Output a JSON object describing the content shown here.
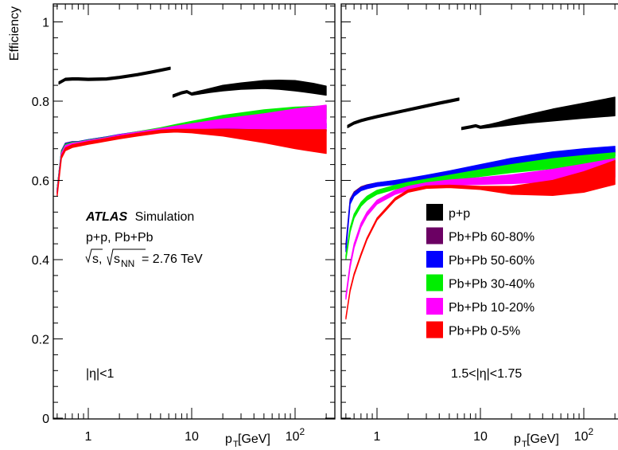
{
  "chart_data": [
    {
      "type": "area",
      "panel": "left",
      "annotation": "|η|<1",
      "x_scale": "log",
      "xlim": [
        0.5,
        200
      ],
      "ylim": [
        0,
        1.05
      ],
      "xlabel": "p_T [GeV]",
      "ylabel": "Efficiency",
      "x_ticks": [
        {
          "v": 1,
          "label": "1"
        },
        {
          "v": 10,
          "label": "10"
        },
        {
          "v": 100,
          "label": "10^2"
        }
      ],
      "y_ticks": [
        {
          "v": 0,
          "label": "0"
        },
        {
          "v": 0.2,
          "label": "0.2"
        },
        {
          "v": 0.4,
          "label": "0.4"
        },
        {
          "v": 0.6,
          "label": "0.6"
        },
        {
          "v": 0.8,
          "label": "0.8"
        },
        {
          "v": 1.0,
          "label": "1"
        }
      ],
      "series": [
        {
          "name": "p+p",
          "color": "#000000",
          "segments": [
            {
              "x": [
                0.52,
                0.6,
                0.7,
                0.8,
                1.0,
                1.5,
                2,
                3,
                4,
                5,
                6.2
              ],
              "low": [
                0.843,
                0.852,
                0.853,
                0.853,
                0.852,
                0.853,
                0.857,
                0.864,
                0.87,
                0.875,
                0.88
              ],
              "high": [
                0.849,
                0.858,
                0.859,
                0.859,
                0.858,
                0.859,
                0.863,
                0.87,
                0.876,
                0.881,
                0.886
              ]
            },
            {
              "x": [
                6.6,
                8,
                9,
                10,
                12,
                15,
                20,
                30,
                50,
                70,
                100,
                150,
                200
              ],
              "low": [
                0.81,
                0.818,
                0.821,
                0.815,
                0.818,
                0.822,
                0.826,
                0.83,
                0.832,
                0.83,
                0.826,
                0.82,
                0.815
              ],
              "high": [
                0.816,
                0.824,
                0.827,
                0.821,
                0.826,
                0.832,
                0.84,
                0.846,
                0.852,
                0.853,
                0.852,
                0.845,
                0.838
              ]
            }
          ]
        },
        {
          "name": "Pb+Pb 60-80%",
          "color": "#6b0063",
          "segments": [
            {
              "x": [
                0.5,
                0.55,
                0.6,
                0.7,
                0.8,
                1,
                1.5,
                2,
                3,
                5,
                7,
                10,
                20,
                50,
                100,
                200
              ],
              "low": [
                0.57,
                0.67,
                0.688,
                0.692,
                0.692,
                0.697,
                0.704,
                0.71,
                0.716,
                0.723,
                0.727,
                0.729,
                0.731,
                0.728,
                0.725,
                0.724
              ],
              "high": [
                0.58,
                0.675,
                0.694,
                0.698,
                0.698,
                0.703,
                0.71,
                0.716,
                0.722,
                0.729,
                0.733,
                0.735,
                0.738,
                0.735,
                0.73,
                0.728
              ]
            }
          ]
        },
        {
          "name": "Pb+Pb 50-60%",
          "color": "#0000ff",
          "segments": [
            {
              "x": [
                0.5,
                0.55,
                0.6,
                0.7,
                0.8,
                1,
                1.5,
                2,
                3,
                5,
                7,
                10,
                20,
                50,
                100,
                200
              ],
              "low": [
                0.57,
                0.668,
                0.686,
                0.69,
                0.691,
                0.696,
                0.703,
                0.709,
                0.716,
                0.724,
                0.729,
                0.733,
                0.737,
                0.737,
                0.734,
                0.732
              ],
              "high": [
                0.58,
                0.674,
                0.693,
                0.697,
                0.698,
                0.703,
                0.71,
                0.716,
                0.723,
                0.731,
                0.737,
                0.741,
                0.746,
                0.747,
                0.745,
                0.744
              ]
            }
          ]
        },
        {
          "name": "Pb+Pb 30-40%",
          "color": "#00ee00",
          "segments": [
            {
              "x": [
                0.5,
                0.55,
                0.6,
                0.7,
                0.8,
                1,
                1.5,
                2,
                3,
                5,
                7,
                10,
                20,
                50,
                100,
                200
              ],
              "low": [
                0.57,
                0.665,
                0.684,
                0.689,
                0.69,
                0.695,
                0.702,
                0.708,
                0.715,
                0.724,
                0.73,
                0.736,
                0.745,
                0.752,
                0.754,
                0.755
              ],
              "high": [
                0.58,
                0.672,
                0.691,
                0.696,
                0.697,
                0.702,
                0.709,
                0.715,
                0.723,
                0.733,
                0.741,
                0.749,
                0.764,
                0.778,
                0.785,
                0.788
              ]
            }
          ]
        },
        {
          "name": "Pb+Pb 10-20%",
          "color": "#ff00ff",
          "segments": [
            {
              "x": [
                0.5,
                0.55,
                0.6,
                0.7,
                0.8,
                1,
                1.5,
                2,
                3,
                5,
                7,
                10,
                20,
                50,
                100,
                200
              ],
              "low": [
                0.565,
                0.66,
                0.68,
                0.686,
                0.688,
                0.693,
                0.7,
                0.707,
                0.714,
                0.724,
                0.728,
                0.73,
                0.732,
                0.73,
                0.728,
                0.728
              ],
              "high": [
                0.575,
                0.668,
                0.688,
                0.694,
                0.696,
                0.701,
                0.708,
                0.715,
                0.722,
                0.731,
                0.737,
                0.743,
                0.755,
                0.768,
                0.78,
                0.79
              ]
            }
          ]
        },
        {
          "name": "Pb+Pb 0-5%",
          "color": "#ff0000",
          "segments": [
            {
              "x": [
                0.5,
                0.55,
                0.6,
                0.7,
                0.8,
                1,
                1.5,
                2,
                3,
                5,
                7,
                10,
                20,
                50,
                100,
                200
              ],
              "low": [
                0.56,
                0.655,
                0.675,
                0.683,
                0.686,
                0.691,
                0.699,
                0.705,
                0.712,
                0.72,
                0.722,
                0.72,
                0.712,
                0.695,
                0.68,
                0.668
              ],
              "high": [
                0.568,
                0.662,
                0.682,
                0.69,
                0.693,
                0.698,
                0.706,
                0.712,
                0.719,
                0.727,
                0.729,
                0.729,
                0.729,
                0.728,
                0.728,
                0.728
              ]
            }
          ]
        }
      ]
    },
    {
      "type": "area",
      "panel": "right",
      "annotation": "1.5<|η|<1.75",
      "x_scale": "log",
      "xlim": [
        0.5,
        200
      ],
      "ylim": [
        0,
        1.05
      ],
      "xlabel": "p_T [GeV]",
      "ylabel": "",
      "x_ticks": [
        {
          "v": 1,
          "label": "1"
        },
        {
          "v": 10,
          "label": "10"
        },
        {
          "v": 100,
          "label": "10^2"
        }
      ],
      "series": [
        {
          "name": "p+p",
          "color": "#000000",
          "segments": [
            {
              "x": [
                0.52,
                0.6,
                0.7,
                0.8,
                1.0,
                1.5,
                2,
                3,
                4,
                5,
                6.2
              ],
              "low": [
                0.733,
                0.742,
                0.748,
                0.752,
                0.758,
                0.768,
                0.775,
                0.785,
                0.792,
                0.797,
                0.802
              ],
              "high": [
                0.739,
                0.748,
                0.754,
                0.758,
                0.764,
                0.774,
                0.781,
                0.791,
                0.798,
                0.803,
                0.808
              ]
            },
            {
              "x": [
                6.6,
                8,
                9,
                10,
                12,
                15,
                20,
                30,
                50,
                100,
                200
              ],
              "low": [
                0.728,
                0.732,
                0.735,
                0.731,
                0.733,
                0.736,
                0.74,
                0.745,
                0.75,
                0.757,
                0.763
              ],
              "high": [
                0.734,
                0.738,
                0.741,
                0.737,
                0.741,
                0.747,
                0.756,
                0.767,
                0.78,
                0.795,
                0.81
              ]
            }
          ]
        },
        {
          "name": "Pb+Pb 60-80%",
          "color": "#6b0063",
          "segments": [
            {
              "x": [
                0.5,
                0.55,
                0.6,
                0.7,
                0.8,
                1,
                1.5,
                2,
                3,
                5,
                10,
                20,
                50,
                100,
                200
              ],
              "low": [
                0.43,
                0.547,
                0.565,
                0.578,
                0.583,
                0.588,
                0.593,
                0.597,
                0.603,
                0.612,
                0.625,
                0.638,
                0.652,
                0.662,
                0.67
              ],
              "high": [
                0.44,
                0.553,
                0.571,
                0.584,
                0.589,
                0.594,
                0.599,
                0.603,
                0.609,
                0.618,
                0.632,
                0.645,
                0.66,
                0.67,
                0.679
              ]
            }
          ]
        },
        {
          "name": "Pb+Pb 50-60%",
          "color": "#0000ff",
          "segments": [
            {
              "x": [
                0.5,
                0.55,
                0.6,
                0.7,
                0.8,
                1,
                1.5,
                2,
                3,
                5,
                10,
                20,
                50,
                100,
                200
              ],
              "low": [
                0.42,
                0.54,
                0.56,
                0.574,
                0.579,
                0.585,
                0.59,
                0.594,
                0.6,
                0.608,
                0.62,
                0.632,
                0.646,
                0.655,
                0.662
              ],
              "high": [
                0.432,
                0.55,
                0.568,
                0.582,
                0.588,
                0.594,
                0.6,
                0.605,
                0.613,
                0.624,
                0.64,
                0.656,
                0.672,
                0.68,
                0.686
              ]
            }
          ]
        },
        {
          "name": "Pb+Pb 30-40%",
          "color": "#00ee00",
          "segments": [
            {
              "x": [
                0.5,
                0.55,
                0.6,
                0.7,
                0.8,
                1,
                1.5,
                2,
                3,
                5,
                10,
                20,
                50,
                100,
                200
              ],
              "low": [
                0.4,
                0.47,
                0.505,
                0.535,
                0.55,
                0.565,
                0.578,
                0.585,
                0.592,
                0.6,
                0.61,
                0.62,
                0.63,
                0.638,
                0.644
              ],
              "high": [
                0.41,
                0.48,
                0.515,
                0.545,
                0.56,
                0.575,
                0.588,
                0.595,
                0.603,
                0.613,
                0.627,
                0.64,
                0.655,
                0.663,
                0.67
              ]
            }
          ]
        },
        {
          "name": "Pb+Pb 10-20%",
          "color": "#ff00ff",
          "segments": [
            {
              "x": [
                0.5,
                0.55,
                0.6,
                0.7,
                0.8,
                1,
                1.5,
                2,
                3,
                5,
                10,
                20,
                50,
                100,
                200
              ],
              "low": [
                0.3,
                0.38,
                0.43,
                0.482,
                0.51,
                0.54,
                0.565,
                0.575,
                0.583,
                0.588,
                0.59,
                0.592,
                0.597,
                0.602,
                0.608
              ],
              "high": [
                0.31,
                0.39,
                0.44,
                0.492,
                0.52,
                0.55,
                0.575,
                0.585,
                0.594,
                0.601,
                0.607,
                0.614,
                0.628,
                0.641,
                0.655
              ]
            }
          ]
        },
        {
          "name": "Pb+Pb 0-5%",
          "color": "#ff0000",
          "segments": [
            {
              "x": [
                0.5,
                0.55,
                0.6,
                0.7,
                0.8,
                1,
                1.5,
                2,
                3,
                5,
                10,
                20,
                50,
                100,
                200
              ],
              "low": [
                0.25,
                0.32,
                0.36,
                0.41,
                0.45,
                0.5,
                0.55,
                0.57,
                0.58,
                0.582,
                0.577,
                0.565,
                0.562,
                0.57,
                0.59
              ],
              "high": [
                0.255,
                0.325,
                0.365,
                0.415,
                0.455,
                0.505,
                0.556,
                0.576,
                0.586,
                0.588,
                0.585,
                0.585,
                0.6,
                0.622,
                0.65
              ]
            }
          ]
        }
      ]
    }
  ],
  "texts": {
    "y_axis_title": "Efficiency",
    "x_axis_title_main": "p",
    "x_axis_title_sub": "T",
    "x_axis_title_unit": " [GeV]",
    "atlas_label": "ATLAS",
    "simulation_label": "Simulation",
    "systems_label": "p+p, Pb+Pb",
    "energy_sqrt1": "s, ",
    "energy_sqrt2": "s",
    "energy_sub": "NN",
    "energy_value": " = 2.76 TeV",
    "left_eta": "|η|<1",
    "right_eta": "1.5<|η|<1.75"
  },
  "legend": [
    {
      "label": "p+p",
      "color": "#000000"
    },
    {
      "label": "Pb+Pb 60-80%",
      "color": "#6b0063"
    },
    {
      "label": "Pb+Pb 50-60%",
      "color": "#0000ff"
    },
    {
      "label": "Pb+Pb 30-40%",
      "color": "#00ee00"
    },
    {
      "label": "Pb+Pb 10-20%",
      "color": "#ff00ff"
    },
    {
      "label": "Pb+Pb 0-5%",
      "color": "#ff0000"
    }
  ]
}
